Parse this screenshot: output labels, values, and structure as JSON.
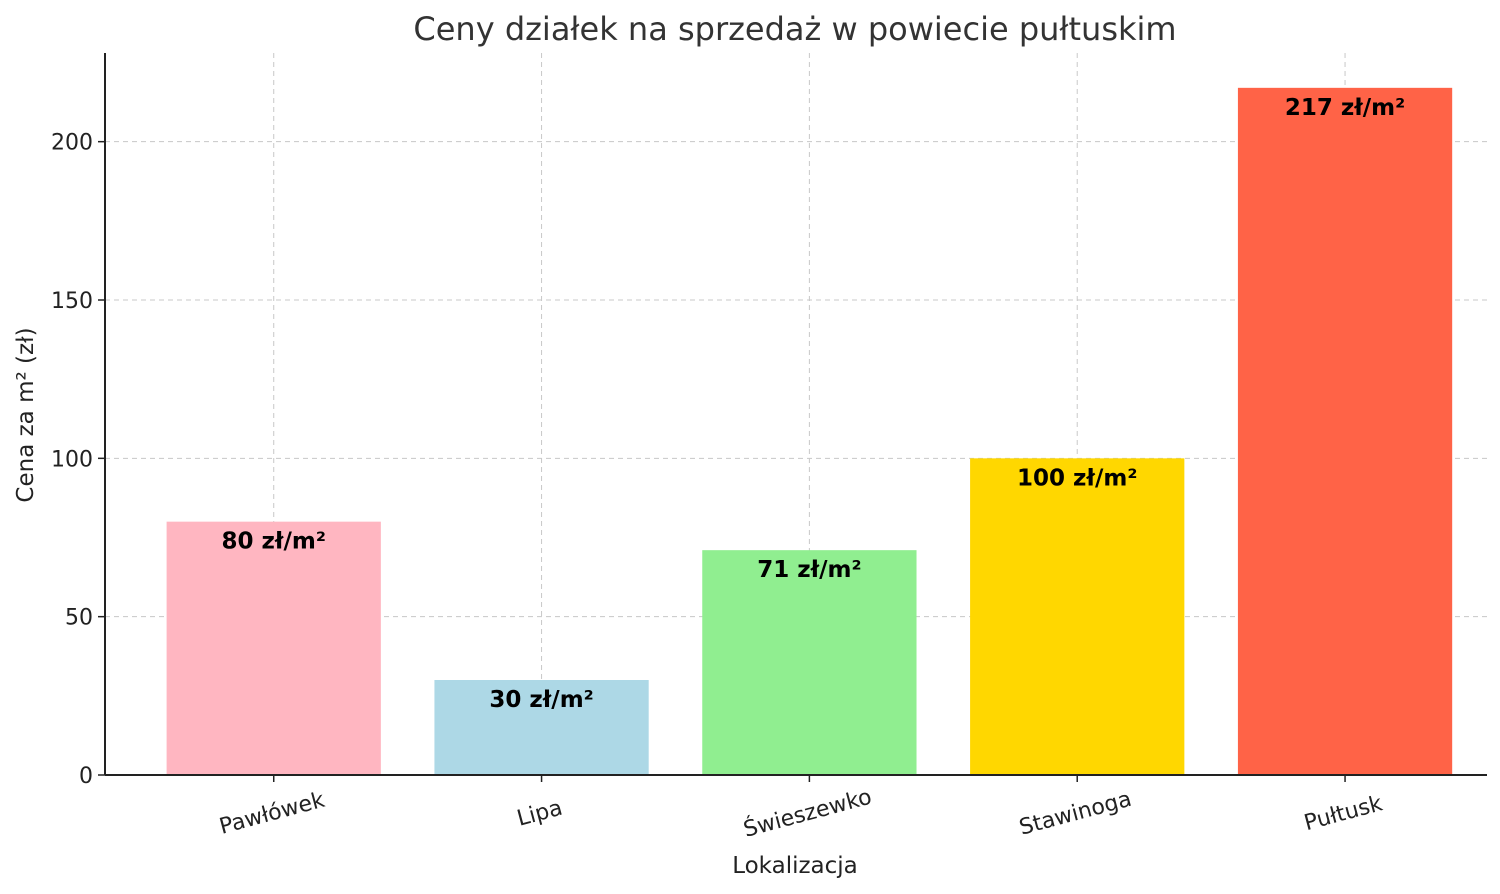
{
  "chart_data": {
    "type": "bar",
    "title": "Ceny działek na sprzedaż w powiecie pułtuskim",
    "xlabel": "Lokalizacja",
    "ylabel": "Cena za m² (zł)",
    "categories": [
      "Pawłówek",
      "Lipa",
      "Świeszewko",
      "Stawinoga",
      "Pułtusk"
    ],
    "values": [
      80,
      30,
      71,
      100,
      217
    ],
    "data_labels": [
      "80 zł/m²",
      "30 zł/m²",
      "71 zł/m²",
      "100 zł/m²",
      "217 zł/m²"
    ],
    "colors": [
      "#ffb6c1",
      "#add8e6",
      "#90ee90",
      "#ffd700",
      "#ff6347"
    ],
    "ylim": [
      0,
      228
    ],
    "yticks": [
      0,
      50,
      100,
      150,
      200
    ],
    "grid": true,
    "legend": "none"
  }
}
